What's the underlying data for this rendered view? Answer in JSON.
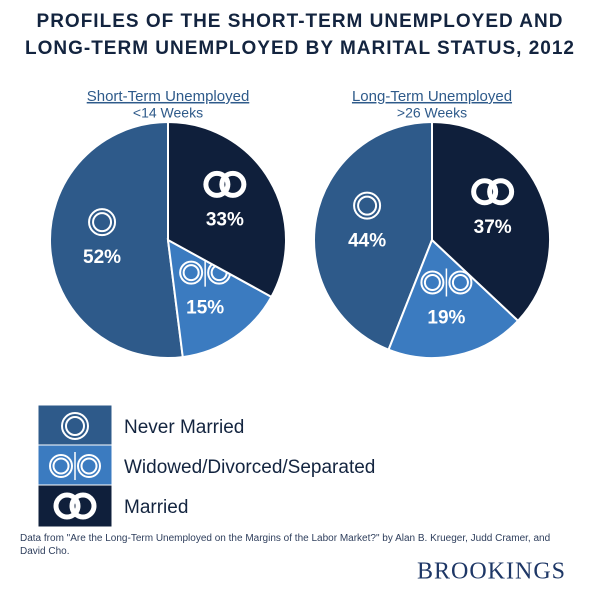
{
  "title": [
    "PROFILES OF THE SHORT-TERM UNEMPLOYED AND",
    "LONG-TERM UNEMPLOYED BY MARITAL STATUS, 2012"
  ],
  "chart_data": [
    {
      "type": "pie",
      "title": "Short-Term Unemployed",
      "subtitle": "<14 Weeks",
      "categories": [
        "Never Married",
        "Widowed/Divorced/Separated",
        "Married"
      ],
      "values": [
        52,
        15,
        33
      ],
      "value_labels": [
        "52%",
        "15%",
        "33%"
      ],
      "colors": [
        "#2e5a8a",
        "#3b7bc0",
        "#0f1f3b"
      ]
    },
    {
      "type": "pie",
      "title": "Long-Term Unemployed",
      "subtitle": ">26 Weeks",
      "categories": [
        "Never Married",
        "Widowed/Divorced/Separated",
        "Married"
      ],
      "values": [
        44,
        19,
        37
      ],
      "value_labels": [
        "44%",
        "19%",
        "37%"
      ],
      "colors": [
        "#2e5a8a",
        "#3b7bc0",
        "#0f1f3b"
      ]
    }
  ],
  "source": "Data from \"Are the Long-Term Unemployed on the Margins of the Labor Market?\" by Alan B. Krueger, Judd Cramer, and David Cho.",
  "brand": "BROOKINGS"
}
